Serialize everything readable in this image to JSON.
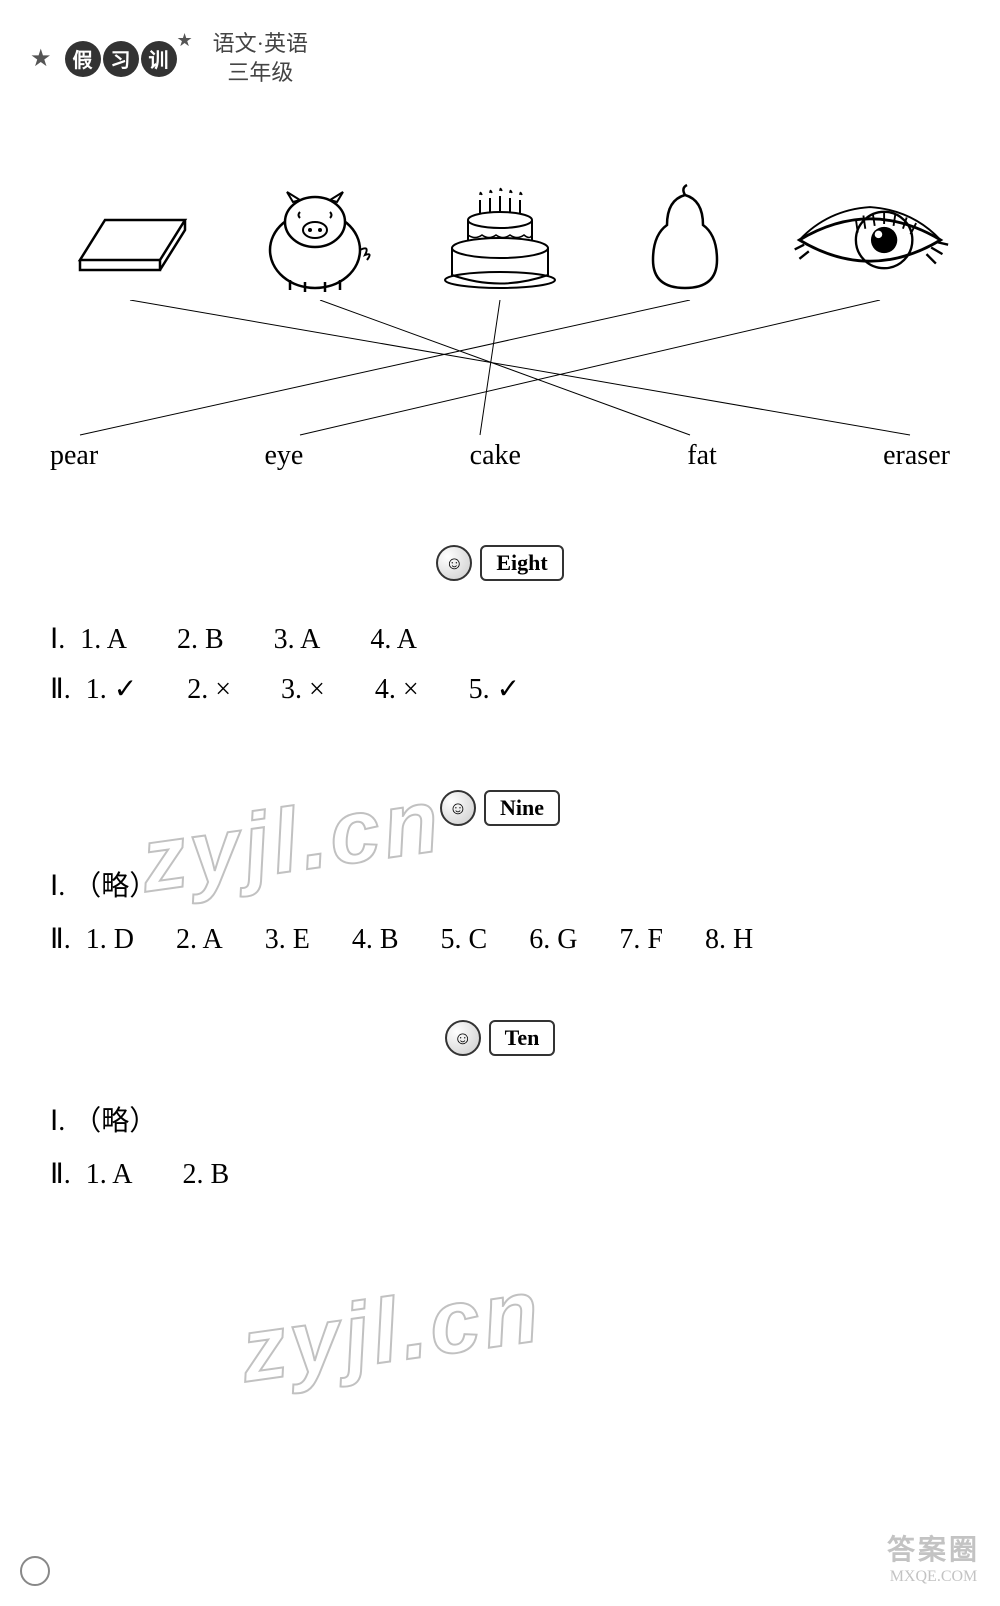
{
  "header": {
    "logo_chars": [
      "假",
      "习",
      "训"
    ],
    "subject_line1": "语文·英语",
    "subject_line2": "三年级"
  },
  "matching": {
    "images": [
      {
        "name": "eraser",
        "shape": "parallelogram"
      },
      {
        "name": "pig",
        "shape": "pig"
      },
      {
        "name": "cake",
        "shape": "cake"
      },
      {
        "name": "pear",
        "shape": "pear"
      },
      {
        "name": "eye",
        "shape": "eye"
      }
    ],
    "words": [
      "pear",
      "eye",
      "cake",
      "fat",
      "eraser"
    ],
    "lines": [
      {
        "from_img": 0,
        "to_word": 4
      },
      {
        "from_img": 1,
        "to_word": 3
      },
      {
        "from_img": 2,
        "to_word": 2
      },
      {
        "from_img": 3,
        "to_word": 0
      },
      {
        "from_img": 4,
        "to_word": 1
      }
    ],
    "img_x_positions": [
      80,
      270,
      450,
      640,
      830
    ],
    "word_x_positions": [
      30,
      250,
      430,
      640,
      860
    ],
    "line_color": "#000000",
    "line_width": 1
  },
  "sections": {
    "eight": {
      "label": "Eight",
      "row1_prefix": "Ⅰ.",
      "row1": [
        "1. A",
        "2. B",
        "3. A",
        "4. A"
      ],
      "row2_prefix": "Ⅱ.",
      "row2": [
        "1. ✓",
        "2. ×",
        "3. ×",
        "4. ×",
        "5. ✓"
      ]
    },
    "nine": {
      "label": "Nine",
      "row1_prefix": "Ⅰ.",
      "row1_text": "（略）",
      "row2_prefix": "Ⅱ.",
      "row2": [
        "1. D",
        "2. A",
        "3. E",
        "4. B",
        "5. C",
        "6. G",
        "7. F",
        "8. H"
      ]
    },
    "ten": {
      "label": "Ten",
      "row1_prefix": "Ⅰ.",
      "row1_text": "（略）",
      "row2_prefix": "Ⅱ.",
      "row2": [
        "1. A",
        "2. B"
      ]
    }
  },
  "watermark_text": "zyjl.cn",
  "footer": {
    "line1": "答案圈",
    "line2": "MXQE.COM"
  },
  "colors": {
    "text": "#000000",
    "bg": "#ffffff",
    "watermark_stroke": "#999999"
  }
}
